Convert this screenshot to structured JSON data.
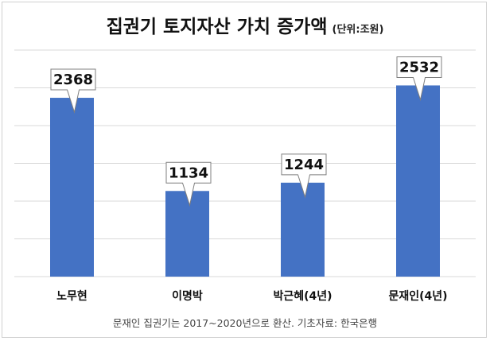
{
  "title": "집권기 토지자산 가치 증가액",
  "unit_note": "(단위:조원)",
  "footnote": "문재인 집권기는 2017~2020년으로 환산. 기초자료: 한국은행",
  "chart_data": {
    "type": "bar",
    "categories": [
      "노무현",
      "이명박",
      "박근혜(4년)",
      "문재인(4년)"
    ],
    "values": [
      2368,
      1134,
      1244,
      2532
    ],
    "data_labels": [
      "2368",
      "1134",
      "1244",
      "2532"
    ],
    "title": "집권기 토지자산 가치 증가액",
    "xlabel": "",
    "ylabel": "",
    "ylim": [
      0,
      3000
    ],
    "grid": true,
    "bar_color": "#4472C4",
    "legend": "none"
  }
}
